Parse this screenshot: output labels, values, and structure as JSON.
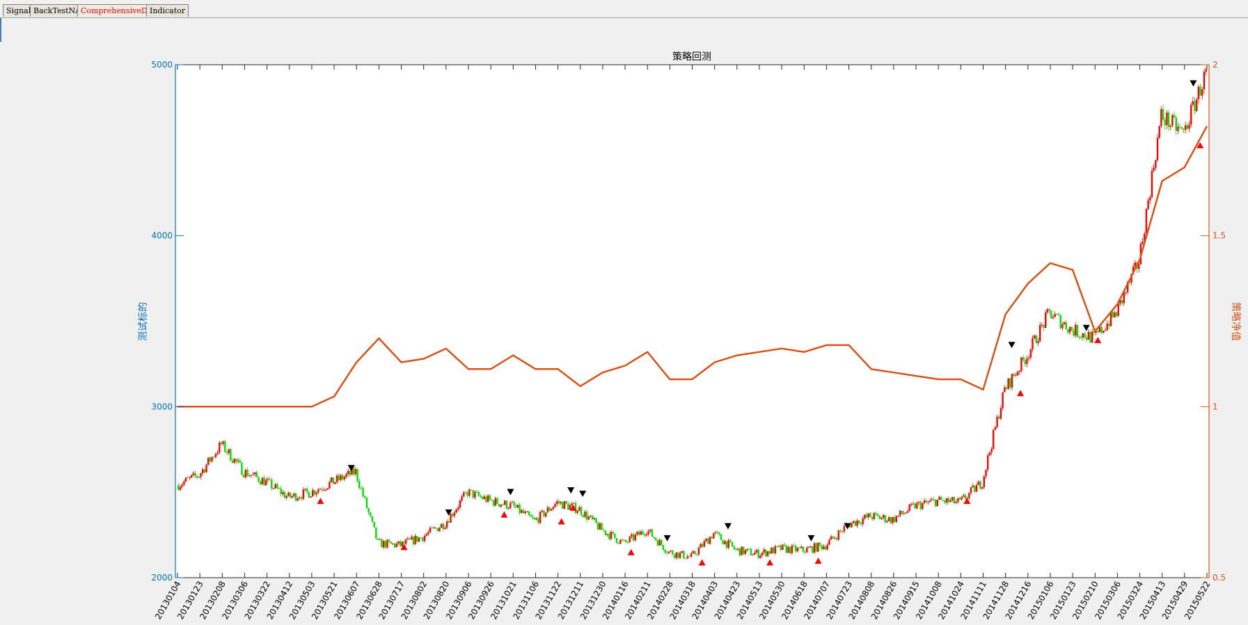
{
  "tabs": [
    {
      "label": "Signal",
      "active": false
    },
    {
      "label": "BackTestNAV",
      "active": false
    },
    {
      "label": "ComprehensiveDemo",
      "active": true
    },
    {
      "label": "Indicator",
      "active": false
    }
  ],
  "colors": {
    "left_axis": "#0072bd",
    "right_axis": "#d95319",
    "nav_line": "#d95319",
    "candle_up": "#ff0000",
    "candle_down": "#00e000",
    "buy_marker": "#ff0000",
    "sell_marker": "#000000",
    "background": "#f0f0f0",
    "plot_bg": "#ffffff"
  },
  "chart_data": {
    "type": "line",
    "title": "策略回测",
    "ylabel_left": "测试标的",
    "ylabel_right": "策略净值",
    "ylim_left": [
      2000,
      5000
    ],
    "ylim_right": [
      0.5,
      2
    ],
    "yticks_left": [
      "2000",
      "3000",
      "4000",
      "5000"
    ],
    "yticks_right": [
      "0.5",
      "1",
      "1.5",
      "2"
    ],
    "grid": false,
    "categories": [
      "20130104",
      "20130123",
      "20130208",
      "20130306",
      "20130322",
      "20130412",
      "20130503",
      "20130521",
      "20130607",
      "20130628",
      "20130717",
      "20130802",
      "20130820",
      "20130906",
      "20130926",
      "20131021",
      "20131106",
      "20131122",
      "20131211",
      "20131230",
      "20140116",
      "20140211",
      "20140228",
      "20140318",
      "20140403",
      "20140423",
      "20140513",
      "20140530",
      "20140618",
      "20140707",
      "20140723",
      "20140808",
      "20140826",
      "20140915",
      "20141008",
      "20141024",
      "20141111",
      "20141128",
      "20141216",
      "20150106",
      "20150123",
      "20150210",
      "20150306",
      "20150324",
      "20150413",
      "20150429",
      "20150522"
    ],
    "series": [
      {
        "type": "line",
        "axis": "left",
        "values": [
          2540,
          2600,
          2780,
          2620,
          2560,
          2470,
          2500,
          2560,
          2620,
          2200,
          2190,
          2240,
          2320,
          2500,
          2450,
          2420,
          2330,
          2440,
          2400,
          2280,
          2200,
          2280,
          2150,
          2120,
          2260,
          2160,
          2140,
          2170,
          2160,
          2190,
          2310,
          2360,
          2340,
          2420,
          2450,
          2440,
          2560,
          3100,
          3300,
          3550,
          3450,
          3400,
          3550,
          3850,
          4700,
          4600,
          4950
        ]
      },
      {
        "type": "line",
        "axis": "right",
        "values": [
          1.0,
          1.0,
          1.0,
          1.0,
          1.0,
          1.0,
          1.0,
          1.03,
          1.13,
          1.2,
          1.13,
          1.14,
          1.17,
          1.11,
          1.11,
          1.15,
          1.11,
          1.11,
          1.06,
          1.1,
          1.12,
          1.16,
          1.08,
          1.08,
          1.13,
          1.15,
          1.16,
          1.17,
          1.16,
          1.18,
          1.18,
          1.11,
          1.1,
          1.09,
          1.08,
          1.08,
          1.05,
          1.27,
          1.36,
          1.42,
          1.4,
          1.22,
          1.3,
          1.43,
          1.66,
          1.7,
          1.82
        ]
      }
    ],
    "buy_signals": [
      {
        "date": "20130510",
        "price": 2480
      },
      {
        "date": "20130719",
        "price": 2210
      },
      {
        "date": "20131011",
        "price": 2400
      },
      {
        "date": "20131125",
        "price": 2360
      },
      {
        "date": "20131205",
        "price": 2440
      },
      {
        "date": "20140123",
        "price": 2180
      },
      {
        "date": "20140325",
        "price": 2120
      },
      {
        "date": "20140521",
        "price": 2120
      },
      {
        "date": "20140630",
        "price": 2130
      },
      {
        "date": "20141029",
        "price": 2480
      },
      {
        "date": "20141210",
        "price": 3110
      },
      {
        "date": "20150213",
        "price": 3420
      },
      {
        "date": "20150515",
        "price": 4560
      }
    ],
    "sell_signals": [
      {
        "date": "20130603",
        "price": 2610
      },
      {
        "date": "20130822",
        "price": 2350
      },
      {
        "date": "20131018",
        "price": 2470
      },
      {
        "date": "20131203",
        "price": 2480
      },
      {
        "date": "20131213",
        "price": 2460
      },
      {
        "date": "20140226",
        "price": 2200
      },
      {
        "date": "20140415",
        "price": 2270
      },
      {
        "date": "20140624",
        "price": 2200
      },
      {
        "date": "20140722",
        "price": 2270
      },
      {
        "date": "20141203",
        "price": 3330
      },
      {
        "date": "20150203",
        "price": 3430
      },
      {
        "date": "20150508",
        "price": 4860
      }
    ]
  }
}
